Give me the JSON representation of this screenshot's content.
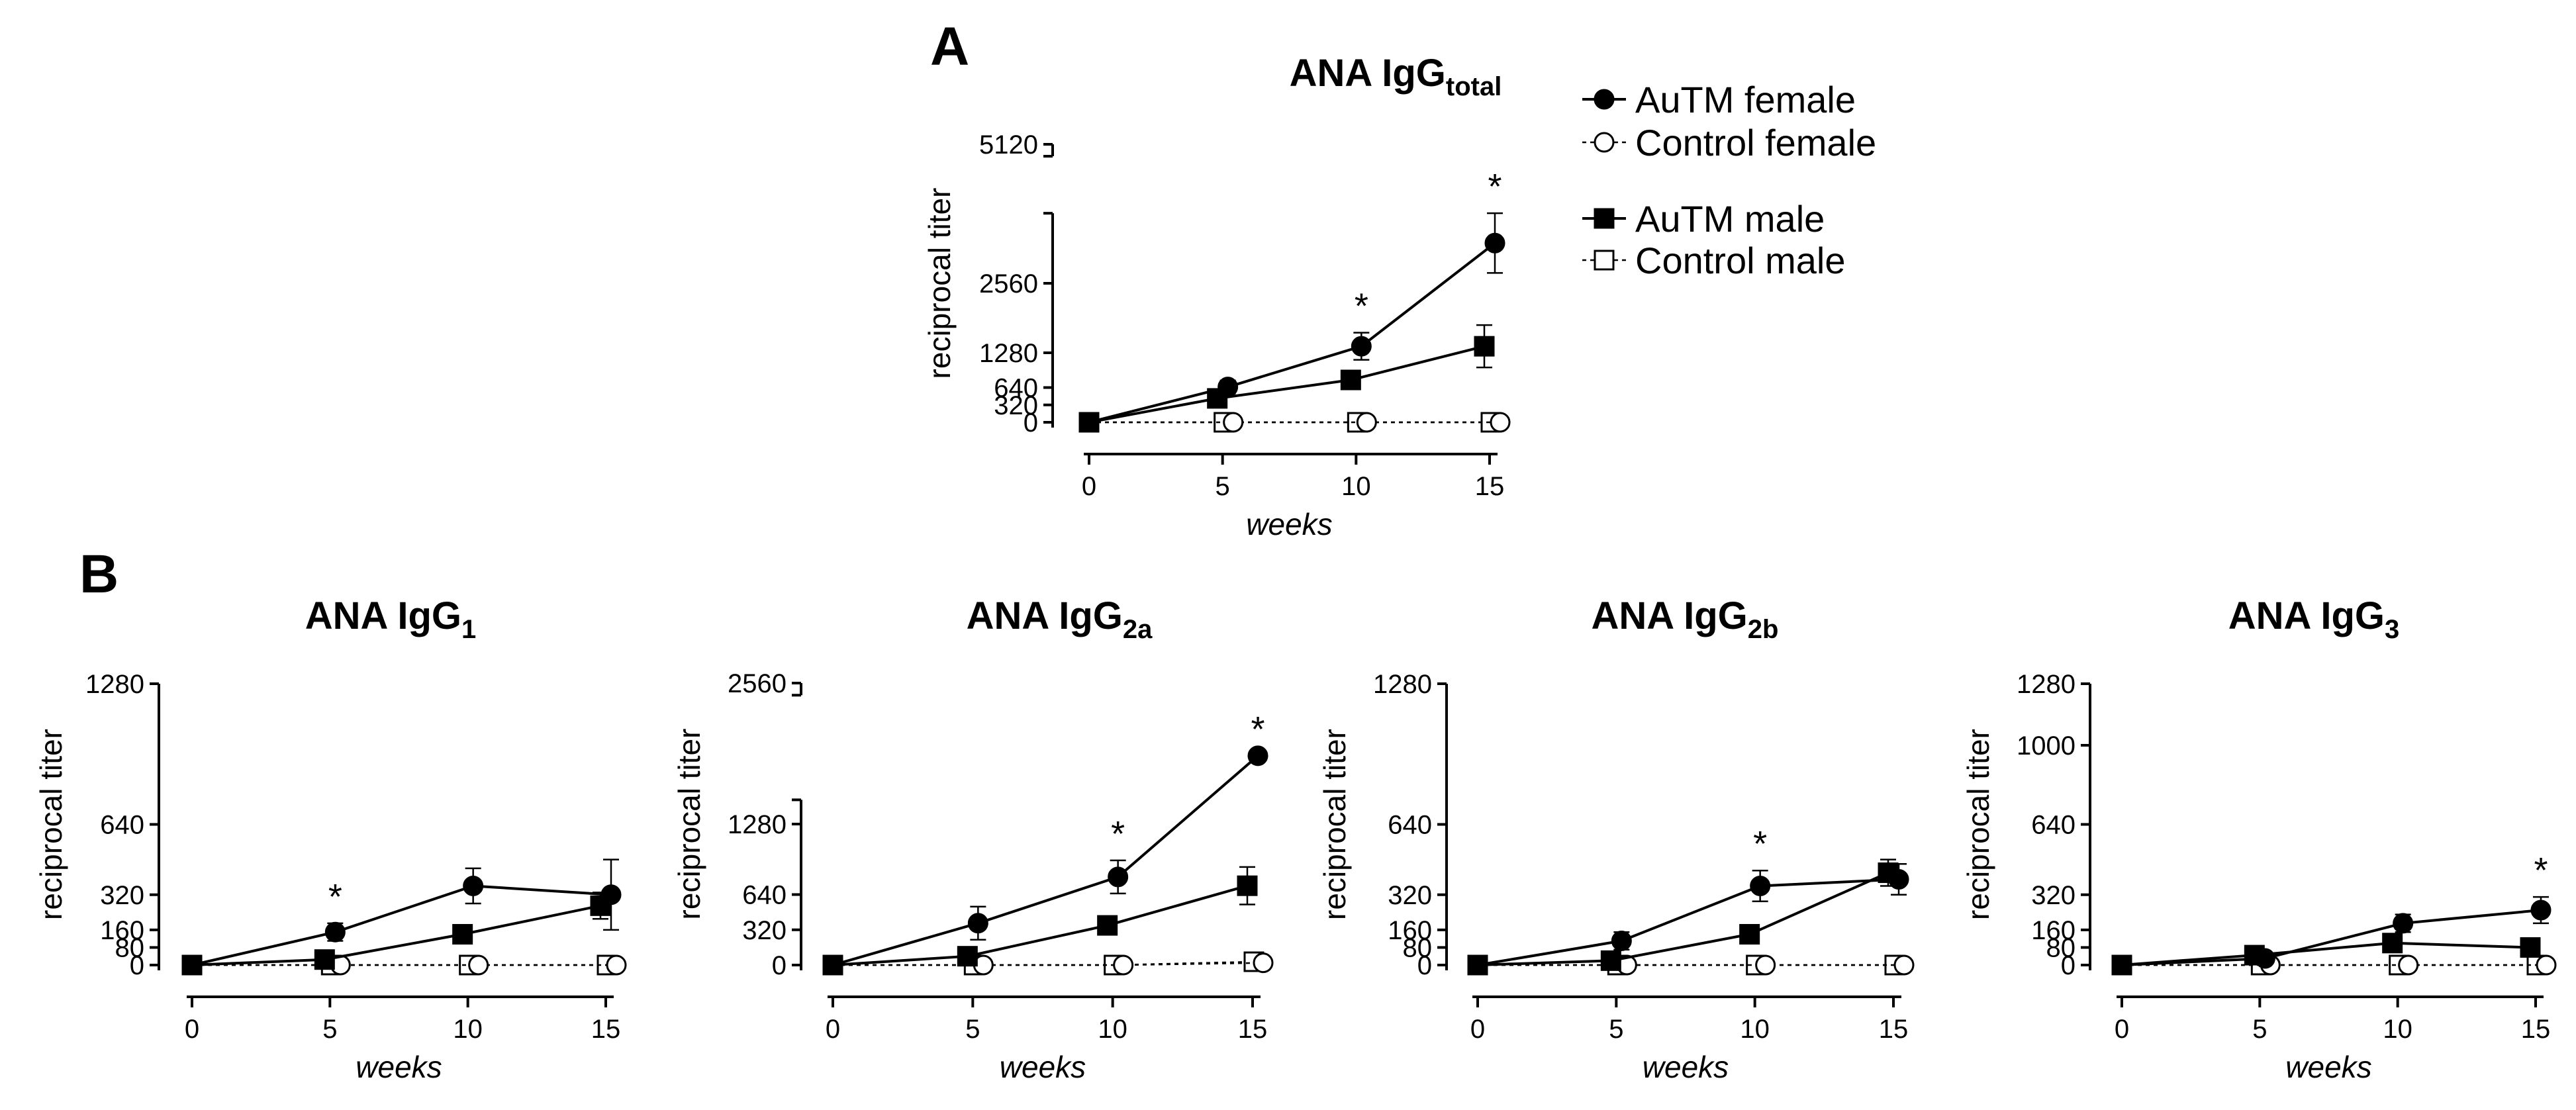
{
  "panels": {
    "A": "A",
    "B": "B"
  },
  "legend": [
    {
      "label": "AuTM female",
      "marker": "circle",
      "filled": true
    },
    {
      "label": "Control female",
      "marker": "circle",
      "filled": false
    },
    {
      "label": "AuTM male",
      "marker": "square",
      "filled": true
    },
    {
      "label": "Control male",
      "marker": "square",
      "filled": false
    }
  ],
  "chart_data": [
    {
      "id": "total",
      "type": "line",
      "title": "ANA IgG",
      "title_sub": "total",
      "xlabel": "weeks",
      "ylabel": "reciprocal titer",
      "x": [
        0,
        5,
        10,
        15
      ],
      "x_ticks": [
        "0",
        "5",
        "10",
        "15"
      ],
      "y_ticks": [
        {
          "value": 0,
          "label": "0"
        },
        {
          "value": 320,
          "label": "320"
        },
        {
          "value": 640,
          "label": "640"
        },
        {
          "value": 1280,
          "label": "1280"
        },
        {
          "value": 2560,
          "label": "2560"
        },
        {
          "value": 5120,
          "label": "5120"
        }
      ],
      "ylim": [
        0,
        5120
      ],
      "y_break": [
        3850,
        4900
      ],
      "series": [
        {
          "name": "AuTM female",
          "values": [
            0,
            650,
            1400,
            3300
          ],
          "errors": [
            0,
            120,
            250,
            550
          ]
        },
        {
          "name": "AuTM male",
          "values": [
            0,
            440,
            780,
            1400
          ],
          "errors": [
            0,
            60,
            120,
            390
          ]
        },
        {
          "name": "Control female",
          "values": [
            0,
            0,
            0,
            0
          ],
          "errors": [
            0,
            0,
            0,
            0
          ]
        },
        {
          "name": "Control male",
          "values": [
            0,
            0,
            0,
            0
          ],
          "errors": [
            0,
            0,
            0,
            0
          ]
        }
      ],
      "significance": [
        {
          "x": 10,
          "label": "*"
        },
        {
          "x": 15,
          "label": "*"
        }
      ]
    },
    {
      "id": "igg1",
      "type": "line",
      "title": "ANA IgG",
      "title_sub": "1",
      "xlabel": "weeks",
      "ylabel": "reciprocal titer",
      "x": [
        0,
        5,
        10,
        15
      ],
      "x_ticks": [
        "0",
        "5",
        "10",
        "15"
      ],
      "y_ticks": [
        {
          "value": 0,
          "label": "0"
        },
        {
          "value": 80,
          "label": "80"
        },
        {
          "value": 160,
          "label": "160"
        },
        {
          "value": 320,
          "label": "320"
        },
        {
          "value": 640,
          "label": "640"
        },
        {
          "value": 1280,
          "label": "1280"
        }
      ],
      "ylim": [
        0,
        1280
      ],
      "series": [
        {
          "name": "AuTM female",
          "values": [
            0,
            150,
            360,
            320
          ],
          "errors": [
            0,
            40,
            80,
            160
          ]
        },
        {
          "name": "AuTM male",
          "values": [
            0,
            25,
            140,
            270
          ],
          "errors": [
            0,
            10,
            25,
            60
          ]
        },
        {
          "name": "Control female",
          "values": [
            0,
            0,
            0,
            0
          ],
          "errors": [
            0,
            0,
            0,
            0
          ]
        },
        {
          "name": "Control male",
          "values": [
            0,
            0,
            0,
            0
          ],
          "errors": [
            0,
            0,
            0,
            0
          ]
        }
      ],
      "significance": [
        {
          "x": 5,
          "label": "*"
        }
      ]
    },
    {
      "id": "igg2a",
      "type": "line",
      "title": "ANA IgG",
      "title_sub": "2a",
      "xlabel": "weeks",
      "ylabel": "reciprocal titer",
      "x": [
        0,
        5,
        10,
        15
      ],
      "x_ticks": [
        "0",
        "5",
        "10",
        "15"
      ],
      "y_ticks": [
        {
          "value": 0,
          "label": "0"
        },
        {
          "value": 320,
          "label": "320"
        },
        {
          "value": 640,
          "label": "640"
        },
        {
          "value": 1280,
          "label": "1280"
        },
        {
          "value": 2560,
          "label": "2560"
        }
      ],
      "ylim": [
        0,
        2560
      ],
      "y_break": [
        1500,
        2450
      ],
      "series": [
        {
          "name": "AuTM female",
          "values": [
            0,
            380,
            800,
            1900
          ],
          "errors": [
            0,
            150,
            150,
            0
          ]
        },
        {
          "name": "AuTM male",
          "values": [
            0,
            80,
            360,
            720
          ],
          "errors": [
            0,
            20,
            40,
            170
          ]
        },
        {
          "name": "Control female",
          "values": [
            0,
            0,
            0,
            20
          ],
          "errors": [
            0,
            0,
            0,
            0
          ]
        },
        {
          "name": "Control male",
          "values": [
            0,
            0,
            0,
            30
          ],
          "errors": [
            0,
            0,
            0,
            0
          ]
        }
      ],
      "significance": [
        {
          "x": 10,
          "label": "*"
        },
        {
          "x": 15,
          "label": "*"
        }
      ]
    },
    {
      "id": "igg2b",
      "type": "line",
      "title": "ANA IgG",
      "title_sub": "2b",
      "xlabel": "weeks",
      "ylabel": "reciprocal titer",
      "x": [
        0,
        5,
        10,
        15
      ],
      "x_ticks": [
        "0",
        "5",
        "10",
        "15"
      ],
      "y_ticks": [
        {
          "value": 0,
          "label": "0"
        },
        {
          "value": 80,
          "label": "80"
        },
        {
          "value": 160,
          "label": "160"
        },
        {
          "value": 320,
          "label": "320"
        },
        {
          "value": 640,
          "label": "640"
        },
        {
          "value": 1280,
          "label": "1280"
        }
      ],
      "ylim": [
        0,
        1280
      ],
      "series": [
        {
          "name": "AuTM female",
          "values": [
            0,
            110,
            360,
            390
          ],
          "errors": [
            0,
            40,
            70,
            70
          ]
        },
        {
          "name": "AuTM male",
          "values": [
            0,
            20,
            140,
            420
          ],
          "errors": [
            0,
            10,
            20,
            60
          ]
        },
        {
          "name": "Control female",
          "values": [
            0,
            0,
            0,
            0
          ],
          "errors": [
            0,
            0,
            0,
            0
          ]
        },
        {
          "name": "Control male",
          "values": [
            0,
            0,
            0,
            0
          ],
          "errors": [
            0,
            0,
            0,
            0
          ]
        }
      ],
      "significance": [
        {
          "x": 10,
          "label": "*"
        }
      ]
    },
    {
      "id": "igg3",
      "type": "line",
      "title": "ANA IgG",
      "title_sub": "3",
      "xlabel": "weeks",
      "ylabel": "reciprocal titer",
      "x": [
        0,
        5,
        10,
        15
      ],
      "x_ticks": [
        "0",
        "5",
        "10",
        "15"
      ],
      "y_ticks": [
        {
          "value": 0,
          "label": "0"
        },
        {
          "value": 80,
          "label": "80"
        },
        {
          "value": 160,
          "label": "160"
        },
        {
          "value": 320,
          "label": "320"
        },
        {
          "value": 640,
          "label": "640"
        },
        {
          "value": 1000,
          "label": "1000"
        },
        {
          "value": 1280,
          "label": "1280"
        }
      ],
      "ylim": [
        0,
        1280
      ],
      "series": [
        {
          "name": "AuTM female",
          "values": [
            0,
            30,
            190,
            250
          ],
          "errors": [
            0,
            10,
            40,
            60
          ]
        },
        {
          "name": "AuTM male",
          "values": [
            0,
            45,
            100,
            80
          ],
          "errors": [
            0,
            10,
            20,
            20
          ]
        },
        {
          "name": "Control female",
          "values": [
            0,
            0,
            0,
            0
          ],
          "errors": [
            0,
            0,
            0,
            0
          ]
        },
        {
          "name": "Control male",
          "values": [
            0,
            0,
            0,
            0
          ],
          "errors": [
            0,
            0,
            0,
            0
          ]
        }
      ],
      "significance": [
        {
          "x": 15,
          "label": "*"
        }
      ]
    }
  ]
}
